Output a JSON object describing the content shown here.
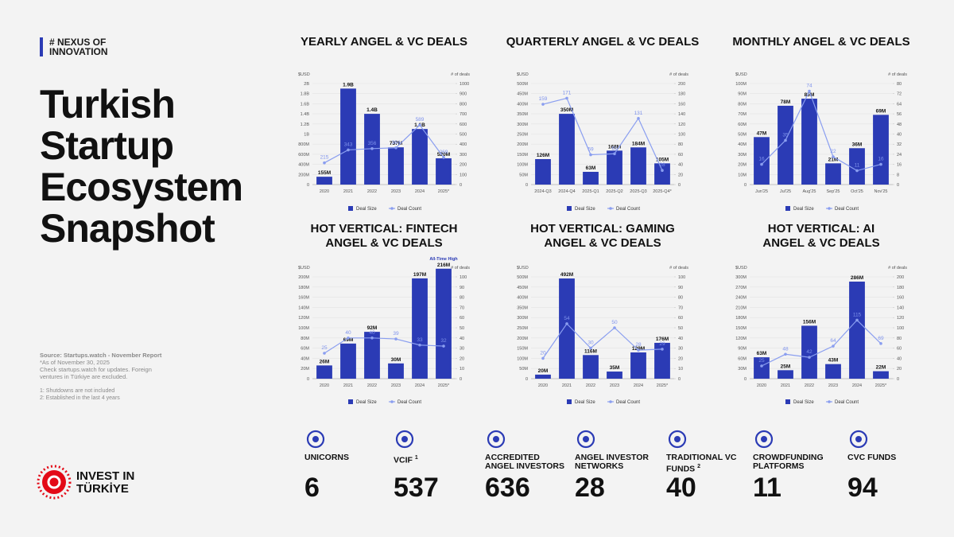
{
  "header": {
    "brand": "# NEXUS OF INNOVATION",
    "title": "Turkish Startup Ecosystem Snapshot"
  },
  "notes": {
    "source": "Source: Startups.watch - November Report",
    "as_of": "*As of November 30, 2025",
    "text": "Check startups.watch for updates. Foreign ventures in Türkiye are excluded.",
    "footnotes": [
      "1: Shutdowns are not included",
      "2: Established in the last 4 years"
    ]
  },
  "logo": {
    "line1": "INVEST IN",
    "line2": "TÜRKİYE"
  },
  "stats": [
    {
      "label": "UNICORNS",
      "value": 6
    },
    {
      "label": "VCIF",
      "sup": "1",
      "value": 537
    },
    {
      "label": "ACCREDITED ANGEL INVESTORS",
      "value": 636
    },
    {
      "label": "ANGEL INVESTOR NETWORKS",
      "value": 28
    },
    {
      "label": "TRADITIONAL VC FUNDS",
      "sup": "2",
      "value": 40
    },
    {
      "label": "CROWDFUNDING PLATFORMS",
      "value": 11
    },
    {
      "label": "CVC FUNDS",
      "value": 94
    }
  ],
  "chart_data": [
    {
      "type": "bar_line",
      "title": [
        "YEARLY ANGEL & VC DEALS"
      ],
      "y_label": "$USD",
      "y2_label": "# of deals",
      "grid": true,
      "categories": [
        "2020",
        "2021",
        "2022",
        "2023",
        "2024",
        "2025*"
      ],
      "series": [
        {
          "name": "Deal Size",
          "color": "#2b3bb5",
          "values": [
            155,
            1900,
            1400,
            737,
            1100,
            520
          ],
          "value_labels": [
            "155M",
            "1.9B",
            "1.4B",
            "737M",
            "1.1B",
            "520M"
          ]
        },
        {
          "name": "Deal Count",
          "color": "#8a9ef0",
          "axis": "y2",
          "values": [
            215,
            343,
            356,
            364,
            589,
            269
          ]
        }
      ],
      "ylim": [
        0,
        2000
      ],
      "yticks": [
        0,
        {
          "value": 200,
          "label": "200M"
        },
        {
          "value": 400,
          "label": "400M"
        },
        {
          "value": 600,
          "label": "600M"
        },
        {
          "value": 800,
          "label": "800M"
        },
        {
          "value": 1000,
          "label": "1B"
        },
        {
          "value": 1200,
          "label": "1.2B"
        },
        {
          "value": 1400,
          "label": "1.4B"
        },
        {
          "value": 1600,
          "label": "1.6B"
        },
        {
          "value": 1800,
          "label": "1.8B"
        },
        {
          "value": 2000,
          "label": "2B"
        }
      ],
      "y2lim": [
        0,
        1000
      ],
      "y2ticks": [
        0,
        100,
        200,
        300,
        400,
        500,
        600,
        700,
        800,
        900,
        1000
      ]
    },
    {
      "type": "bar_line",
      "title": [
        "QUARTERLY ANGEL & VC DEALS"
      ],
      "y_label": "$USD",
      "y2_label": "# of deals",
      "grid": true,
      "categories": [
        "2024-Q3",
        "2024-Q4",
        "2025-Q1",
        "2025-Q2",
        "2025-Q3",
        "2025-Q4*"
      ],
      "series": [
        {
          "name": "Deal Size",
          "color": "#2b3bb5",
          "values": [
            126,
            350,
            63,
            168,
            184,
            105
          ],
          "value_labels": [
            "126M",
            "350M",
            "63M",
            "168M",
            "184M",
            "105M"
          ]
        },
        {
          "name": "Deal Count",
          "color": "#8a9ef0",
          "axis": "y2",
          "values": [
            159,
            171,
            59,
            61,
            131,
            28
          ]
        }
      ],
      "ylim": [
        0,
        500
      ],
      "yticks": [
        0,
        {
          "value": 50,
          "label": "50M"
        },
        {
          "value": 100,
          "label": "100M"
        },
        {
          "value": 150,
          "label": "150M"
        },
        {
          "value": 200,
          "label": "200M"
        },
        {
          "value": 250,
          "label": "250M"
        },
        {
          "value": 300,
          "label": "300M"
        },
        {
          "value": 350,
          "label": "350M"
        },
        {
          "value": 400,
          "label": "400M"
        },
        {
          "value": 450,
          "label": "450M"
        },
        {
          "value": 500,
          "label": "500M"
        }
      ],
      "y2lim": [
        0,
        200
      ],
      "y2ticks": [
        0,
        20,
        40,
        60,
        80,
        100,
        120,
        140,
        160,
        180,
        200
      ]
    },
    {
      "type": "bar_line",
      "title": [
        "MONTHLY ANGEL & VC DEALS"
      ],
      "y_label": "$USD",
      "y2_label": "# of deals",
      "grid": true,
      "categories": [
        "Jun'25",
        "Jul'25",
        "Aug'25",
        "Sep'25",
        "Oct'25",
        "Nov'25"
      ],
      "series": [
        {
          "name": "Deal Size",
          "color": "#2b3bb5",
          "values": [
            47,
            78,
            85,
            21,
            36,
            69
          ],
          "value_labels": [
            "47M",
            "78M",
            "85M",
            "21M",
            "36M",
            "69M"
          ]
        },
        {
          "name": "Deal Count",
          "color": "#8a9ef0",
          "axis": "y2",
          "values": [
            16,
            35,
            74,
            22,
            11,
            16
          ]
        }
      ],
      "ylim": [
        0,
        100
      ],
      "yticks": [
        0,
        {
          "value": 10,
          "label": "10M"
        },
        {
          "value": 20,
          "label": "20M"
        },
        {
          "value": 30,
          "label": "30M"
        },
        {
          "value": 40,
          "label": "40M"
        },
        {
          "value": 50,
          "label": "50M"
        },
        {
          "value": 60,
          "label": "60M"
        },
        {
          "value": 70,
          "label": "70M"
        },
        {
          "value": 80,
          "label": "80M"
        },
        {
          "value": 90,
          "label": "90M"
        },
        {
          "value": 100,
          "label": "100M"
        }
      ],
      "y2lim": [
        0,
        80
      ],
      "y2ticks": [
        0,
        8,
        16,
        24,
        32,
        40,
        48,
        56,
        64,
        72,
        80
      ]
    },
    {
      "type": "bar_line",
      "title": [
        "HOT VERTICAL: FINTECH",
        "ANGEL & VC DEALS"
      ],
      "y_label": "$USD",
      "y2_label": "# of deals",
      "grid": true,
      "annotation": "All-Time High",
      "categories": [
        "2020",
        "2021",
        "2022",
        "2023",
        "2024",
        "2025*"
      ],
      "series": [
        {
          "name": "Deal Size",
          "color": "#2b3bb5",
          "values": [
            26,
            69,
            92,
            30,
            197,
            216
          ],
          "value_labels": [
            "26M",
            "69M",
            "92M",
            "30M",
            "197M",
            "216M"
          ]
        },
        {
          "name": "Deal Count",
          "color": "#8a9ef0",
          "axis": "y2",
          "values": [
            25,
            40,
            40,
            39,
            33,
            32
          ]
        }
      ],
      "ylim": [
        0,
        200
      ],
      "yticks": [
        0,
        {
          "value": 20,
          "label": "20M"
        },
        {
          "value": 40,
          "label": "40M"
        },
        {
          "value": 60,
          "label": "60M"
        },
        {
          "value": 80,
          "label": "80M"
        },
        {
          "value": 100,
          "label": "100M"
        },
        {
          "value": 120,
          "label": "120M"
        },
        {
          "value": 140,
          "label": "140M"
        },
        {
          "value": 160,
          "label": "160M"
        },
        {
          "value": 180,
          "label": "180M"
        },
        {
          "value": 200,
          "label": "200M"
        }
      ],
      "y2lim": [
        0,
        100
      ],
      "y2ticks": [
        0,
        10,
        20,
        30,
        40,
        50,
        60,
        70,
        80,
        90,
        100
      ]
    },
    {
      "type": "bar_line",
      "title": [
        "HOT VERTICAL: GAMING",
        "ANGEL & VC DEALS"
      ],
      "y_label": "$USD",
      "y2_label": "# of deals",
      "grid": true,
      "categories": [
        "2020",
        "2021",
        "2022",
        "2023",
        "2024",
        "2025*"
      ],
      "series": [
        {
          "name": "Deal Size",
          "color": "#2b3bb5",
          "values": [
            20,
            492,
            116,
            35,
            129,
            176
          ],
          "value_labels": [
            "20M",
            "492M",
            "116M",
            "35M",
            "129M",
            "176M"
          ]
        },
        {
          "name": "Deal Count",
          "color": "#8a9ef0",
          "axis": "y2",
          "values": [
            20,
            54,
            30,
            50,
            28,
            29
          ]
        }
      ],
      "ylim": [
        0,
        500
      ],
      "yticks": [
        0,
        {
          "value": 50,
          "label": "50M"
        },
        {
          "value": 100,
          "label": "100M"
        },
        {
          "value": 150,
          "label": "150M"
        },
        {
          "value": 200,
          "label": "200M"
        },
        {
          "value": 250,
          "label": "250M"
        },
        {
          "value": 300,
          "label": "300M"
        },
        {
          "value": 350,
          "label": "350M"
        },
        {
          "value": 400,
          "label": "400M"
        },
        {
          "value": 450,
          "label": "450M"
        },
        {
          "value": 500,
          "label": "500M"
        }
      ],
      "y2lim": [
        0,
        100
      ],
      "y2ticks": [
        0,
        10,
        20,
        30,
        40,
        50,
        60,
        70,
        80,
        90,
        100
      ]
    },
    {
      "type": "bar_line",
      "title": [
        "HOT VERTICAL: AI",
        "ANGEL & VC DEALS"
      ],
      "y_label": "$USD",
      "y2_label": "# of deals",
      "grid": true,
      "categories": [
        "2020",
        "2021",
        "2022",
        "2023",
        "2024",
        "2025*"
      ],
      "series": [
        {
          "name": "Deal Size",
          "color": "#2b3bb5",
          "values": [
            63,
            25,
            156,
            43,
            286,
            22
          ],
          "value_labels": [
            "63M",
            "25M",
            "156M",
            "43M",
            "286M",
            "22M"
          ]
        },
        {
          "name": "Deal Count",
          "color": "#8a9ef0",
          "axis": "y2",
          "values": [
            25,
            48,
            42,
            64,
            115,
            69
          ]
        }
      ],
      "ylim": [
        0,
        300
      ],
      "yticks": [
        0,
        {
          "value": 30,
          "label": "30M"
        },
        {
          "value": 60,
          "label": "60M"
        },
        {
          "value": 90,
          "label": "90M"
        },
        {
          "value": 120,
          "label": "120M"
        },
        {
          "value": 150,
          "label": "150M"
        },
        {
          "value": 180,
          "label": "180M"
        },
        {
          "value": 210,
          "label": "210M"
        },
        {
          "value": 240,
          "label": "240M"
        },
        {
          "value": 270,
          "label": "270M"
        },
        {
          "value": 300,
          "label": "300M"
        }
      ],
      "y2lim": [
        0,
        200
      ],
      "y2ticks": [
        0,
        20,
        40,
        60,
        80,
        100,
        120,
        140,
        160,
        180,
        200
      ]
    }
  ]
}
